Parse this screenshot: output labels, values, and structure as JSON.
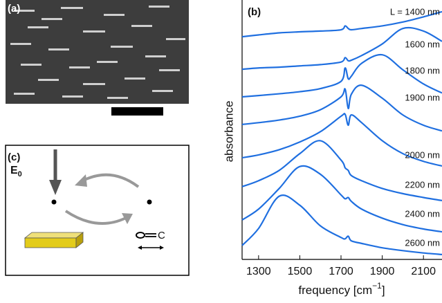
{
  "panels": {
    "a": {
      "label": "(a)"
    },
    "c": {
      "label": "(c)",
      "field": {
        "symbol": "E",
        "subscript": "0"
      },
      "molecule_atom": "C"
    }
  },
  "chart_data": {
    "type": "line",
    "panel_label": "(b)",
    "ylabel": "absorbance",
    "xlabel": {
      "text": "frequency [cm",
      "superscript": "−1",
      "close": "]"
    },
    "x": [
      1220,
      1300,
      1400,
      1500,
      1600,
      1700,
      1720,
      1735,
      1750,
      1800,
      1900,
      2000,
      2100,
      2190
    ],
    "xlim": [
      1220,
      2190
    ],
    "xticks": [
      1300,
      1500,
      1700,
      1900,
      2100
    ],
    "ylim": [
      0,
      10
    ],
    "series": [
      {
        "name": "L = 1400 nm",
        "color": "#1f6fe0",
        "values": [
          8.63,
          8.7,
          8.78,
          8.82,
          8.85,
          8.9,
          9.05,
          8.95,
          8.9,
          8.95,
          9.05,
          9.2,
          9.4,
          9.6
        ]
      },
      {
        "name": "1600 nm",
        "color": "#1f6fe0",
        "values": [
          7.37,
          7.42,
          7.45,
          7.5,
          7.55,
          7.65,
          7.82,
          7.7,
          7.72,
          7.9,
          8.35,
          8.95,
          8.85,
          8.45
        ]
      },
      {
        "name": "1800 nm",
        "color": "#1f6fe0",
        "values": [
          6.3,
          6.35,
          6.42,
          6.5,
          6.62,
          6.9,
          7.42,
          7.0,
          7.1,
          7.6,
          7.93,
          7.35,
          6.8,
          6.45
        ]
      },
      {
        "name": "1900 nm",
        "color": "#1f6fe0",
        "values": [
          5.23,
          5.3,
          5.4,
          5.55,
          5.8,
          6.3,
          6.6,
          5.85,
          6.4,
          6.75,
          6.25,
          5.6,
          5.2,
          4.98
        ]
      },
      {
        "name": "2000 nm",
        "color": "#1f6fe0",
        "values": [
          3.94,
          4.05,
          4.25,
          4.55,
          4.95,
          5.55,
          5.62,
          5.2,
          5.6,
          5.3,
          4.6,
          4.1,
          3.8,
          3.62
        ]
      },
      {
        "name": "2200 nm",
        "color": "#1f6fe0",
        "values": [
          2.82,
          3.05,
          3.45,
          4.1,
          4.6,
          3.85,
          3.55,
          3.45,
          3.25,
          3.05,
          2.75,
          2.55,
          2.4,
          2.28
        ]
      },
      {
        "name": "2400 nm",
        "color": "#1f6fe0",
        "values": [
          1.53,
          1.95,
          2.75,
          3.6,
          3.3,
          2.5,
          2.35,
          2.4,
          2.25,
          1.95,
          1.6,
          1.35,
          1.18,
          1.07
        ]
      },
      {
        "name": "2600 nm",
        "color": "#1f6fe0",
        "values": [
          0.54,
          1.2,
          2.45,
          2.1,
          1.3,
          0.85,
          0.8,
          0.9,
          0.72,
          0.62,
          0.45,
          0.34,
          0.25,
          0.19
        ]
      }
    ]
  }
}
